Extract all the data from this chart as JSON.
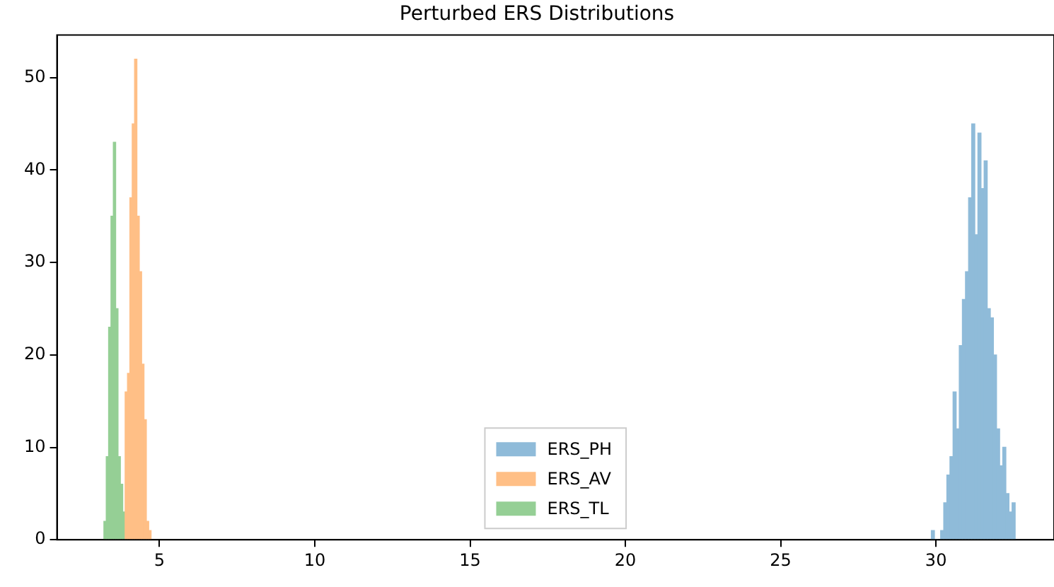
{
  "chart_data": {
    "type": "histogram",
    "title": "Perturbed ERS Distributions",
    "bins": [
      3.21,
      3.286,
      3.362,
      3.438,
      3.514,
      3.59,
      3.666,
      3.742,
      3.818,
      3.894,
      3.97,
      4.046,
      4.122,
      4.198,
      4.274,
      4.35,
      4.426,
      4.502,
      4.578,
      4.654,
      4.73,
      29.85,
      29.95,
      30.05,
      30.15,
      30.25,
      30.35,
      30.45,
      30.55,
      30.65,
      30.75,
      30.85,
      30.95,
      31.05,
      31.15,
      31.25,
      31.35,
      31.45,
      31.55,
      31.65,
      31.75,
      31.85,
      31.95,
      32.05,
      32.15,
      32.25,
      32.35,
      32.45,
      32.55
    ],
    "series": [
      {
        "name": "ERS_PH",
        "color": "#8fbbd9",
        "values": [
          null,
          null,
          null,
          null,
          null,
          null,
          null,
          null,
          null,
          null,
          null,
          null,
          null,
          null,
          null,
          null,
          null,
          null,
          null,
          null,
          null,
          1,
          0,
          0,
          1,
          4,
          7,
          9,
          16,
          12,
          21,
          26,
          29,
          37,
          45,
          33,
          44,
          38,
          41,
          25,
          24,
          20,
          12,
          8,
          10,
          5,
          3,
          4
        ]
      },
      {
        "name": "ERS_AV",
        "color": "#ffbf86",
        "values": [
          null,
          null,
          null,
          null,
          null,
          null,
          null,
          null,
          null,
          16,
          18,
          37,
          45,
          52,
          35,
          29,
          19,
          13,
          2,
          1,
          null,
          null,
          null,
          null,
          null,
          null,
          null,
          null,
          null,
          null,
          null,
          null,
          null,
          null,
          null,
          null,
          null,
          null,
          null,
          null,
          null,
          null,
          null,
          null,
          null,
          null,
          null,
          null
        ]
      },
      {
        "name": "ERS_TL",
        "color": "#95cf95",
        "values": [
          2,
          9,
          23,
          35,
          43,
          25,
          9,
          6,
          3,
          null,
          null,
          null,
          null,
          null,
          null,
          null,
          null,
          null,
          null,
          null,
          null,
          null,
          null,
          null,
          null,
          null,
          null,
          null,
          null,
          null,
          null,
          null,
          null,
          null,
          null,
          null,
          null,
          null,
          null,
          null,
          null,
          null,
          null,
          null,
          null,
          null,
          null,
          null
        ]
      }
    ],
    "xlim": [
      1.7,
      33.8
    ],
    "xticks": [
      5,
      10,
      15,
      20,
      25,
      30
    ],
    "ylim": [
      0,
      54.6
    ],
    "yticks": [
      0,
      10,
      20,
      30,
      40,
      50
    ],
    "grid": false,
    "legend": "bottom"
  }
}
